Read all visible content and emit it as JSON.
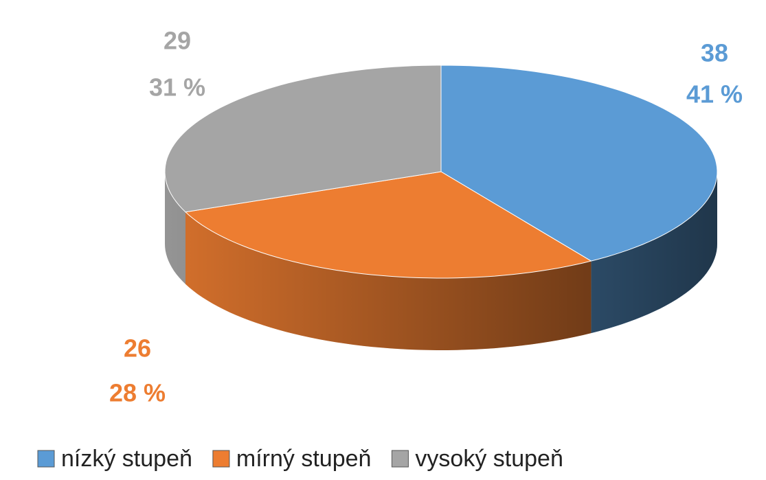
{
  "chart_data": {
    "type": "pie",
    "categories": [
      "nízký stupeň",
      "mírný stupeň",
      "vysoký stupeň"
    ],
    "values": [
      38,
      26,
      29
    ],
    "percent_labels": [
      "41 %",
      "28 %",
      "31 %"
    ],
    "colors": [
      "#5b9bd5",
      "#ed7d31",
      "#a5a5a5"
    ],
    "legend": "bottom"
  }
}
